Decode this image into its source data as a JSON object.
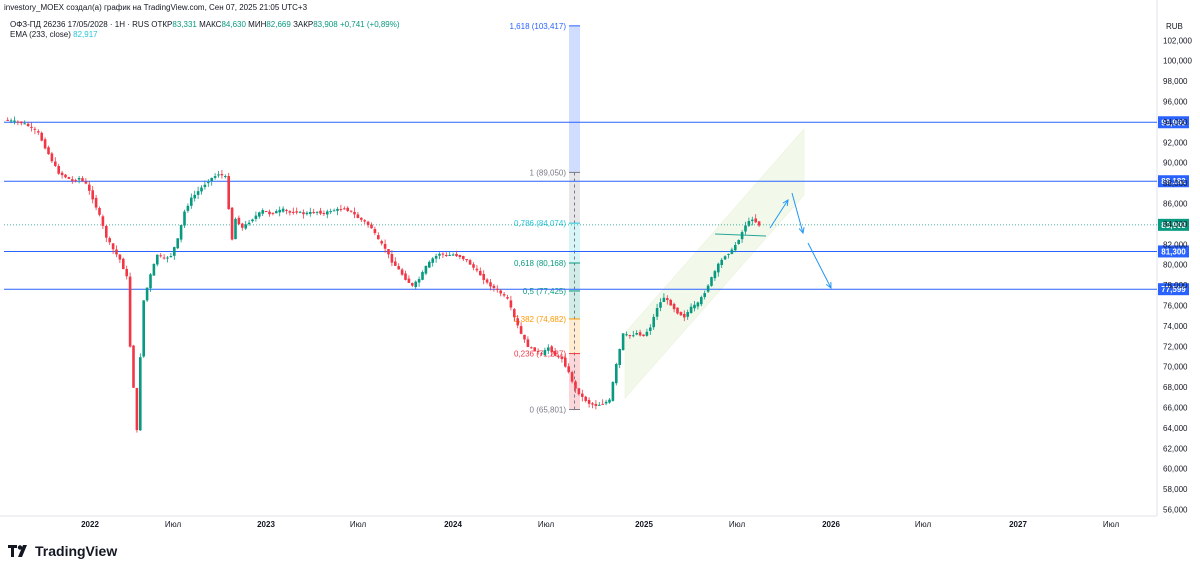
{
  "header": {
    "attribution": "investory_MOEX создал(а) график на TradingView.com, Сен 07, 2025 21:05 UTC+3"
  },
  "legend": {
    "symbol": "ОФЗ-ПД 26236 17/05/2028 · 1Н · RUS",
    "open_label": "ОТКР",
    "open": "83,331",
    "high_label": "МАКС",
    "high": "84,630",
    "low_label": "МИН",
    "low": "82,669",
    "close_label": "ЗАКР",
    "close": "83,908",
    "change": "+0,741 (+0,89%)",
    "ema_label": "EMA (233, close)",
    "ema_value": "82,917"
  },
  "branding": {
    "logo_text": "TradingView"
  },
  "colors": {
    "up": "#089981",
    "down": "#f23645",
    "level_line": "#2962ff",
    "channel": "#e6f4d8",
    "fib_gray": "#787b86",
    "fib_teal": "#26c6da",
    "fib_green": "#089981",
    "fib_orange": "#ff9800",
    "fib_red": "#f23645",
    "price_label_bg": "#2962ff"
  },
  "chart_data": {
    "type": "candlestick",
    "title": "ОФЗ-ПД 26236 17/05/2028 · 1Н · RUS",
    "y_unit": "RUB",
    "ylim": [
      55,
      104
    ],
    "x_ticks": [
      "2022",
      "Июл",
      "2023",
      "Июл",
      "2024",
      "Июл",
      "2025",
      "Июл",
      "2026",
      "Июл",
      "2027",
      "Июл"
    ],
    "y_ticks": [
      "102,000",
      "100,000",
      "98,000",
      "96,000",
      "94,000",
      "92,000",
      "90,000",
      "88,000",
      "86,000",
      "84,000",
      "82,000",
      "80,000",
      "78,000",
      "76,000",
      "74,000",
      "72,000",
      "70,000",
      "68,000",
      "66,000",
      "64,000",
      "62,000",
      "60,000",
      "58,000",
      "56,000"
    ],
    "y_tick_values": [
      102,
      100,
      98,
      96,
      94,
      92,
      90,
      88,
      86,
      84,
      82,
      80,
      78,
      76,
      74,
      72,
      70,
      68,
      66,
      64,
      62,
      60,
      58,
      56
    ],
    "price_series": [
      [
        0,
        94.2
      ],
      [
        4,
        94.1
      ],
      [
        8,
        94.0
      ],
      [
        12,
        93.8
      ],
      [
        16,
        93.4
      ],
      [
        20,
        92.9
      ],
      [
        24,
        91.5
      ],
      [
        28,
        90.2
      ],
      [
        32,
        89.0
      ],
      [
        36,
        88.6
      ],
      [
        40,
        88.2
      ],
      [
        44,
        88.5
      ],
      [
        48,
        87.9
      ],
      [
        52,
        86.5
      ],
      [
        56,
        84.8
      ],
      [
        60,
        82.7
      ],
      [
        64,
        81.5
      ],
      [
        68,
        80.5
      ],
      [
        72,
        78.8
      ],
      [
        74,
        72.0
      ],
      [
        76,
        68.0
      ],
      [
        78,
        63.7
      ],
      [
        80,
        71.0
      ],
      [
        82,
        76.5
      ],
      [
        86,
        79.0
      ],
      [
        90,
        81.0
      ],
      [
        94,
        80.6
      ],
      [
        98,
        80.9
      ],
      [
        102,
        82.5
      ],
      [
        106,
        85.2
      ],
      [
        110,
        86.5
      ],
      [
        114,
        87.2
      ],
      [
        118,
        87.9
      ],
      [
        122,
        88.5
      ],
      [
        126,
        88.9
      ],
      [
        130,
        88.6
      ],
      [
        134,
        82.5
      ],
      [
        136,
        84.5
      ],
      [
        140,
        83.6
      ],
      [
        144,
        84.2
      ],
      [
        148,
        84.8
      ],
      [
        152,
        85.3
      ],
      [
        156,
        85.0
      ],
      [
        160,
        85.2
      ],
      [
        164,
        85.4
      ],
      [
        168,
        85.1
      ],
      [
        172,
        85.2
      ],
      [
        176,
        85.0
      ],
      [
        180,
        85.1
      ],
      [
        184,
        85.2
      ],
      [
        188,
        85.0
      ],
      [
        192,
        85.3
      ],
      [
        196,
        85.4
      ],
      [
        200,
        85.5
      ],
      [
        204,
        85.2
      ],
      [
        208,
        84.6
      ],
      [
        212,
        84.2
      ],
      [
        216,
        83.6
      ],
      [
        220,
        82.4
      ],
      [
        224,
        81.6
      ],
      [
        228,
        80.3
      ],
      [
        232,
        79.5
      ],
      [
        236,
        78.6
      ],
      [
        240,
        77.9
      ],
      [
        244,
        78.6
      ],
      [
        248,
        79.8
      ],
      [
        252,
        80.6
      ],
      [
        256,
        81.1
      ],
      [
        260,
        80.9
      ],
      [
        264,
        81.0
      ],
      [
        268,
        80.8
      ],
      [
        272,
        80.4
      ],
      [
        276,
        79.7
      ],
      [
        280,
        79.0
      ],
      [
        284,
        78.2
      ],
      [
        288,
        77.7
      ],
      [
        292,
        77.2
      ],
      [
        296,
        76.6
      ],
      [
        300,
        74.8
      ],
      [
        304,
        73.2
      ],
      [
        308,
        72.0
      ],
      [
        312,
        71.6
      ],
      [
        316,
        71.2
      ],
      [
        320,
        71.9
      ],
      [
        324,
        71.1
      ],
      [
        328,
        70.8
      ],
      [
        332,
        69.4
      ],
      [
        336,
        67.8
      ],
      [
        340,
        67.0
      ],
      [
        344,
        66.4
      ],
      [
        348,
        66.2
      ],
      [
        352,
        66.4
      ],
      [
        356,
        66.7
      ],
      [
        360,
        70.2
      ],
      [
        364,
        73.2
      ],
      [
        368,
        73.0
      ],
      [
        372,
        73.3
      ],
      [
        376,
        73.0
      ],
      [
        380,
        73.9
      ],
      [
        384,
        75.8
      ],
      [
        388,
        76.8
      ],
      [
        392,
        76.1
      ],
      [
        396,
        75.3
      ],
      [
        400,
        74.9
      ],
      [
        404,
        75.8
      ],
      [
        408,
        76.2
      ],
      [
        412,
        77.3
      ],
      [
        416,
        78.7
      ],
      [
        420,
        80.0
      ],
      [
        424,
        80.9
      ],
      [
        428,
        81.4
      ],
      [
        432,
        82.5
      ],
      [
        436,
        83.9
      ],
      [
        440,
        84.5
      ],
      [
        444,
        83.9
      ]
    ],
    "horizontal_levels": [
      {
        "value": 93.965,
        "label": "93,965"
      },
      {
        "value": 88.182,
        "label": "88,182"
      },
      {
        "value": 81.3,
        "label": "81,300"
      },
      {
        "value": 77.599,
        "label": "77,599"
      }
    ],
    "current_price": {
      "value": 83.908,
      "label": "83,908"
    },
    "fibonacci": [
      {
        "ratio_label": "1,618 (103,417)",
        "value": 103.417,
        "color": "#2962ff"
      },
      {
        "ratio_label": "1 (89,050)",
        "value": 89.05,
        "color": "#787b86"
      },
      {
        "ratio_label": "0,786 (84,074)",
        "value": 84.074,
        "color": "#26c6da"
      },
      {
        "ratio_label": "0,618 (80,168)",
        "value": 80.168,
        "color": "#089981"
      },
      {
        "ratio_label": "0,5 (77,425)",
        "value": 77.425,
        "color": "#089981"
      },
      {
        "ratio_label": "0,382 (74,682)",
        "value": 74.682,
        "color": "#ff9800"
      },
      {
        "ratio_label": "0,236 (71,287)",
        "value": 71.287,
        "color": "#f23645"
      },
      {
        "ratio_label": "0 (65,801)",
        "value": 65.801,
        "color": "#787b86"
      }
    ]
  }
}
